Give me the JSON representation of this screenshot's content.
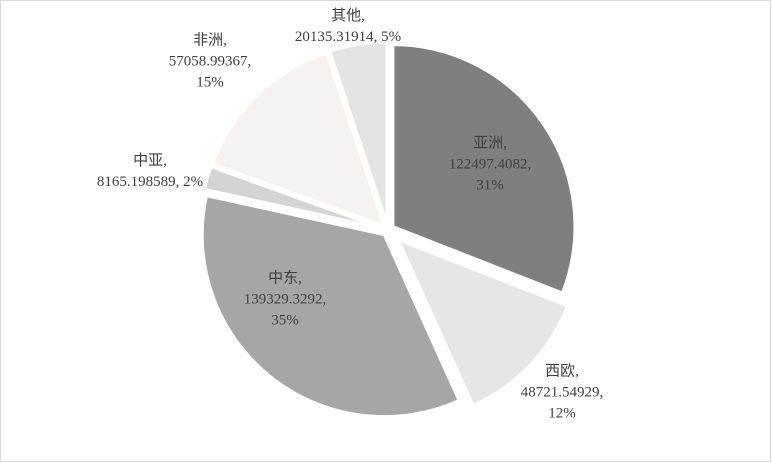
{
  "chart_data": {
    "type": "pie",
    "values": [
      122497.4082,
      48721.54929,
      139329.3292,
      8165.198589,
      57058.99367,
      20135.31914
    ],
    "colors": [
      "#7f7f7f",
      "#e6e6e6",
      "#a6a6a6",
      "#d4d4d4",
      "#f5f3f1",
      "#e4e4e4"
    ],
    "labels": [
      [
        "亚洲,",
        "122497.4082,",
        "31%"
      ],
      [
        "西欧,",
        "48721.54929,",
        "12%"
      ],
      [
        "中东,",
        "139329.3292,",
        "35%"
      ],
      [
        "中亚,",
        "8165.198589, 2%"
      ],
      [
        "非洲,",
        "57058.99367,",
        "15%"
      ],
      [
        "其他,",
        "20135.31914, 5%"
      ]
    ]
  }
}
